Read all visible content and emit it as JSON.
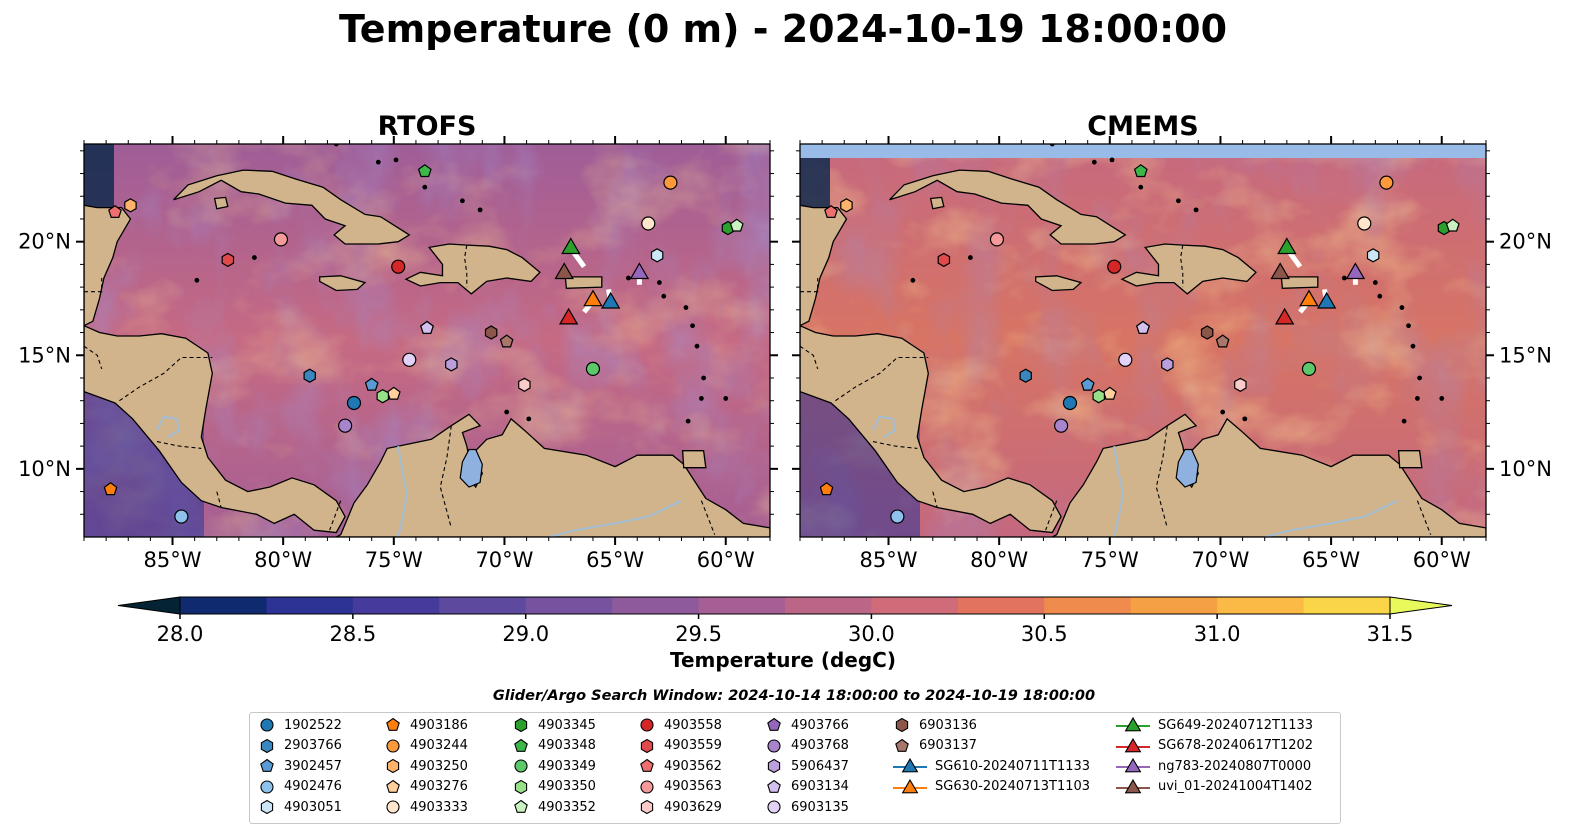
{
  "figure_title": "Temperature (0 m) - 2024-10-19 18:00:00",
  "panels": [
    {
      "id": "rtofs",
      "title": "RTOFS"
    },
    {
      "id": "cmems",
      "title": "CMEMS"
    }
  ],
  "map_extent": {
    "lon_min": -89,
    "lon_max": -58,
    "lat_min": 7,
    "lat_max": 24.3
  },
  "lon_ticks": [
    {
      "value": -85,
      "label": "85°W"
    },
    {
      "value": -80,
      "label": "80°W"
    },
    {
      "value": -75,
      "label": "75°W"
    },
    {
      "value": -70,
      "label": "70°W"
    },
    {
      "value": -65,
      "label": "65°W"
    },
    {
      "value": -60,
      "label": "60°W"
    }
  ],
  "lat_ticks": [
    {
      "value": 10,
      "label": "10°N"
    },
    {
      "value": 15,
      "label": "15°N"
    },
    {
      "value": 20,
      "label": "20°N"
    }
  ],
  "colorbar": {
    "label": "Temperature (degC)",
    "min": 28.0,
    "max": 31.5,
    "step": 0.25,
    "extend": "both",
    "ticks": [
      {
        "value": 28.0,
        "label": "28.0"
      },
      {
        "value": 28.5,
        "label": "28.5"
      },
      {
        "value": 29.0,
        "label": "29.0"
      },
      {
        "value": 29.5,
        "label": "29.5"
      },
      {
        "value": 30.0,
        "label": "30.0"
      },
      {
        "value": 30.5,
        "label": "30.5"
      },
      {
        "value": 31.0,
        "label": "31.0"
      },
      {
        "value": 31.5,
        "label": "31.5"
      }
    ],
    "colors": [
      "#042333",
      "#0f2a6e",
      "#2c3395",
      "#463b9c",
      "#5d4a9e",
      "#77529e",
      "#8e5a9b",
      "#a55f94",
      "#bb6687",
      "#d06c79",
      "#e2745f",
      "#ee8b4d",
      "#f6a046",
      "#fbb945",
      "#f9d547",
      "#e8fa5b"
    ]
  },
  "colors": {
    "land": "#d2b48c",
    "ocean_default": "#b8628a",
    "lake": "#8fb1e0",
    "river": "#a3bed5",
    "cmems_band": "#99bbe8"
  },
  "legend_title": "Glider/Argo Search Window: 2024-10-14 18:00:00 to 2024-10-19 18:00:00",
  "legend": [
    {
      "label": "1902522",
      "marker": "circle",
      "color": "#1f77b4"
    },
    {
      "label": "2903766",
      "marker": "hexagon",
      "color": "#3a87c0"
    },
    {
      "label": "3902457",
      "marker": "pentagon",
      "color": "#5a9bd5"
    },
    {
      "label": "4902476",
      "marker": "circle",
      "color": "#8ec2ec"
    },
    {
      "label": "4903051",
      "marker": "hexagon",
      "color": "#cde6f7"
    },
    {
      "label": "4903186",
      "marker": "pentagon",
      "color": "#ff7f0e"
    },
    {
      "label": "4903244",
      "marker": "circle",
      "color": "#ff9a3c"
    },
    {
      "label": "4903250",
      "marker": "hexagon",
      "color": "#ffb36b"
    },
    {
      "label": "4903276",
      "marker": "pentagon",
      "color": "#ffcf9e"
    },
    {
      "label": "4903333",
      "marker": "circle",
      "color": "#ffe6cc"
    },
    {
      "label": "4903345",
      "marker": "hexagon",
      "color": "#2ca02c"
    },
    {
      "label": "4903348",
      "marker": "pentagon",
      "color": "#3cb84a"
    },
    {
      "label": "4903349",
      "marker": "circle",
      "color": "#5cc86a"
    },
    {
      "label": "4903350",
      "marker": "hexagon",
      "color": "#98df8a"
    },
    {
      "label": "4903352",
      "marker": "pentagon",
      "color": "#c9f2c0"
    },
    {
      "label": "4903558",
      "marker": "circle",
      "color": "#d62728"
    },
    {
      "label": "4903559",
      "marker": "hexagon",
      "color": "#e04a4a"
    },
    {
      "label": "4903562",
      "marker": "pentagon",
      "color": "#ee6f6f"
    },
    {
      "label": "4903563",
      "marker": "circle",
      "color": "#f59a9a"
    },
    {
      "label": "4903629",
      "marker": "hexagon",
      "color": "#fbcaca"
    },
    {
      "label": "4903766",
      "marker": "pentagon",
      "color": "#9467bd"
    },
    {
      "label": "4903768",
      "marker": "circle",
      "color": "#a884cc"
    },
    {
      "label": "5906437",
      "marker": "hexagon",
      "color": "#bb9fdd"
    },
    {
      "label": "6903134",
      "marker": "pentagon",
      "color": "#d3c0ef"
    },
    {
      "label": "6903135",
      "marker": "circle",
      "color": "#e2d2f7"
    },
    {
      "label": "6903136",
      "marker": "hexagon",
      "color": "#8c564b"
    },
    {
      "label": "6903137",
      "marker": "pentagon",
      "color": "#a8766b"
    },
    {
      "label": "SG610-20240711T1133",
      "marker": "triangle",
      "color": "#1f77b4"
    },
    {
      "label": "SG630-20240713T1103",
      "marker": "triangle",
      "color": "#ff7f0e"
    },
    {
      "label": "SG649-20240712T1133",
      "marker": "triangle",
      "color": "#2ca02c"
    },
    {
      "label": "SG678-20240617T1202",
      "marker": "triangle",
      "color": "#d62728"
    },
    {
      "label": "ng783-20240807T0000",
      "marker": "triangle",
      "color": "#9467bd"
    },
    {
      "label": "uvi_01-20241004T1402",
      "marker": "triangle",
      "color": "#8c564b"
    }
  ],
  "observations": [
    {
      "id": "1902522",
      "lon": -76.8,
      "lat": 12.9
    },
    {
      "id": "2903766",
      "lon": -78.8,
      "lat": 14.1
    },
    {
      "id": "3902457",
      "lon": -76.0,
      "lat": 13.7
    },
    {
      "id": "4902476",
      "lon": -84.6,
      "lat": 7.9
    },
    {
      "id": "4903051",
      "lon": -63.1,
      "lat": 19.4
    },
    {
      "id": "4903186",
      "lon": -87.8,
      "lat": 9.1
    },
    {
      "id": "4903244",
      "lon": -62.5,
      "lat": 22.6
    },
    {
      "id": "4903250",
      "lon": -86.9,
      "lat": 21.6
    },
    {
      "id": "4903276",
      "lon": -75.0,
      "lat": 13.3
    },
    {
      "id": "4903333",
      "lon": -63.5,
      "lat": 20.8
    },
    {
      "id": "4903345",
      "lon": -59.9,
      "lat": 20.6
    },
    {
      "id": "4903348",
      "lon": -73.6,
      "lat": 23.1
    },
    {
      "id": "4903349",
      "lon": -66.0,
      "lat": 14.4
    },
    {
      "id": "4903350",
      "lon": -75.5,
      "lat": 13.2
    },
    {
      "id": "4903352",
      "lon": -59.5,
      "lat": 20.7
    },
    {
      "id": "4903558",
      "lon": -74.8,
      "lat": 18.9
    },
    {
      "id": "4903559",
      "lon": -82.5,
      "lat": 19.2
    },
    {
      "id": "4903562",
      "lon": -87.6,
      "lat": 21.3
    },
    {
      "id": "4903563",
      "lon": -80.1,
      "lat": 20.1
    },
    {
      "id": "4903629",
      "lon": -69.1,
      "lat": 13.7
    },
    {
      "id": "4903766",
      "lon": -73.5,
      "lat": 16.2
    },
    {
      "id": "4903768",
      "lon": -77.2,
      "lat": 11.9
    },
    {
      "id": "5906437",
      "lon": -72.4,
      "lat": 14.6
    },
    {
      "id": "6903134",
      "lon": -73.5,
      "lat": 16.2
    },
    {
      "id": "6903135",
      "lon": -74.3,
      "lat": 14.8
    },
    {
      "id": "6903136",
      "lon": -70.6,
      "lat": 16.0
    },
    {
      "id": "6903137",
      "lon": -69.9,
      "lat": 15.6
    }
  ],
  "gliders": [
    {
      "id": "SG610-20240711T1133",
      "lon": -65.2,
      "lat": 17.3,
      "track": [
        [
          -65.3,
          17.9
        ],
        [
          -65.2,
          17.3
        ]
      ]
    },
    {
      "id": "SG630-20240713T1103",
      "lon": -66.0,
      "lat": 17.4,
      "track": [
        [
          -66.4,
          16.9
        ],
        [
          -66.0,
          17.4
        ]
      ]
    },
    {
      "id": "SG649-20240712T1133",
      "lon": -67.0,
      "lat": 19.7,
      "track": [
        [
          -66.4,
          18.9
        ],
        [
          -67.0,
          19.7
        ]
      ]
    },
    {
      "id": "SG678-20240617T1202",
      "lon": -67.1,
      "lat": 16.6,
      "track": []
    },
    {
      "id": "ng783-20240807T0000",
      "lon": -63.9,
      "lat": 18.6,
      "track": [
        [
          -63.9,
          18.1
        ],
        [
          -63.9,
          18.6
        ]
      ]
    },
    {
      "id": "uvi_01-20241004T1402",
      "lon": -67.3,
      "lat": 18.6,
      "track": []
    }
  ]
}
